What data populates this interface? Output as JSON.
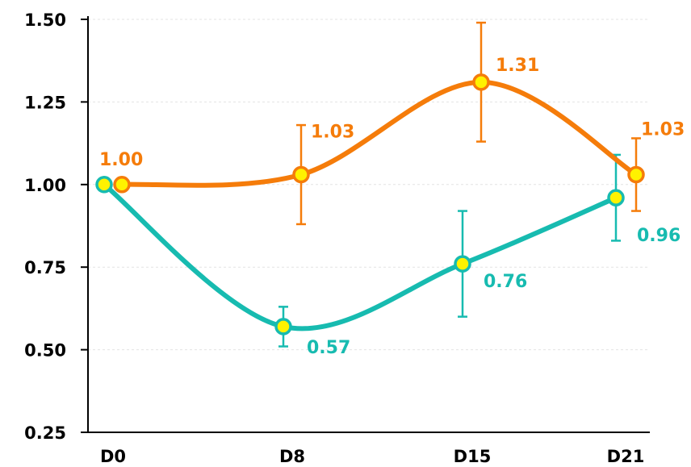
{
  "chart_data": {
    "type": "line",
    "title": "",
    "xlabel": "",
    "ylabel": "",
    "categories": [
      "D0",
      "D8",
      "D15",
      "D21"
    ],
    "ylim": [
      0.25,
      1.5
    ],
    "yticks": [
      "0.25",
      "0.50",
      "0.75",
      "1.00",
      "1.25",
      "1.50"
    ],
    "grid": "horizontal dashed",
    "legend": "none",
    "series": [
      {
        "color": "#F57C0A",
        "values": [
          1.0,
          1.03,
          1.31,
          1.03
        ],
        "errors": [
          0.0,
          0.15,
          0.18,
          0.11
        ],
        "labels": [
          "1.00",
          "1.03",
          "1.31",
          "1.03"
        ],
        "x_shift": 0.1
      },
      {
        "color": "#17BBB0",
        "values": [
          1.0,
          0.57,
          0.76,
          0.96
        ],
        "errors": [
          0.0,
          0.06,
          0.16,
          0.13
        ],
        "labels": [
          "",
          "0.57",
          "0.76",
          "0.96"
        ],
        "x_shift": -0.1
      }
    ],
    "marker_fill": "#FFF200"
  }
}
